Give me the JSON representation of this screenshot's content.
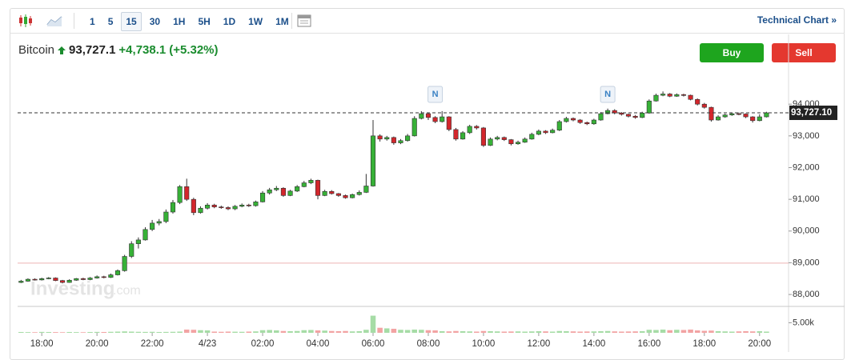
{
  "toolbar": {
    "intervals": [
      "1",
      "5",
      "15",
      "30",
      "1H",
      "5H",
      "1D",
      "1W",
      "1M"
    ],
    "active_interval": 2,
    "technical_chart": "Technical Chart »"
  },
  "header": {
    "name": "Bitcoin",
    "price": "93,727.1",
    "change": "+4,738.1",
    "change_percent": "(+5.32%)"
  },
  "buttons": {
    "buy": "Buy",
    "sell": "Sell"
  },
  "watermark": {
    "brand": "Investing",
    "suffix": ".com"
  },
  "chart_data": {
    "type": "candlestick",
    "up_color": "#37b137",
    "down_color": "#d3262c",
    "volume_up_color": "#a6dca6",
    "volume_down_color": "#f2a3a3",
    "xlim": [
      -0.5,
      111.2
    ],
    "xticks": [
      {
        "value": 3,
        "label": "18:00"
      },
      {
        "value": 11,
        "label": "20:00"
      },
      {
        "value": 19,
        "label": "22:00"
      },
      {
        "value": 27,
        "label": "4/23"
      },
      {
        "value": 35,
        "label": "02:00"
      },
      {
        "value": 43,
        "label": "04:00"
      },
      {
        "value": 51,
        "label": "06:00"
      },
      {
        "value": 59,
        "label": "08:00"
      },
      {
        "value": 67,
        "label": "10:00"
      },
      {
        "value": 75,
        "label": "12:00"
      },
      {
        "value": 83,
        "label": "14:00"
      },
      {
        "value": 91,
        "label": "16:00"
      },
      {
        "value": 99,
        "label": "18:00"
      },
      {
        "value": 107,
        "label": "20:00"
      }
    ],
    "ylim": [
      87650,
      95190
    ],
    "yticks": [
      {
        "value": 88000,
        "label": "88,000"
      },
      {
        "value": 89000,
        "label": "89,000"
      },
      {
        "value": 90000,
        "label": "90,000"
      },
      {
        "value": 91000,
        "label": "91,000"
      },
      {
        "value": 92000,
        "label": "92,000"
      },
      {
        "value": 93000,
        "label": "93,000"
      },
      {
        "value": 94000,
        "label": "94,000"
      }
    ],
    "reference_line": 88989,
    "last_price": {
      "value": 93727.1,
      "label": "93,727.10"
    },
    "volume_ylim": [
      0,
      12700
    ],
    "volume_yticks": [
      {
        "value": 5000,
        "label": "5.00k"
      }
    ],
    "news_markers": [
      {
        "x": 60,
        "label": "N"
      },
      {
        "x": 85,
        "label": "N"
      }
    ],
    "open": [
      88380,
      88420,
      88480,
      88460,
      88500,
      88520,
      88440,
      88380,
      88450,
      88500,
      88470,
      88520,
      88560,
      88540,
      88620,
      88750,
      89200,
      89600,
      89720,
      90050,
      90250,
      90300,
      90600,
      90900,
      91400,
      91000,
      90580,
      90720,
      90820,
      90760,
      90740,
      90700,
      90780,
      90820,
      90800,
      90920,
      91200,
      91300,
      91350,
      91120,
      91260,
      91400,
      91520,
      91600,
      91120,
      91250,
      91180,
      91120,
      91050,
      91150,
      91220,
      91420,
      93000,
      92900,
      92950,
      92780,
      92850,
      93000,
      93550,
      93700,
      93580,
      93450,
      93600,
      93200,
      92900,
      93100,
      93300,
      93250,
      92700,
      92900,
      92950,
      92880,
      92750,
      92800,
      92900,
      93050,
      93150,
      93100,
      93180,
      93450,
      93550,
      93500,
      93420,
      93380,
      93500,
      93700,
      93800,
      93720,
      93680,
      93620,
      93580,
      93720,
      94100,
      94280,
      94320,
      94250,
      94300,
      94280,
      94150,
      94000,
      93900,
      93500,
      93600,
      93660,
      93700,
      93690,
      93600,
      93480,
      93600
    ],
    "high": [
      88460,
      88510,
      88510,
      88530,
      88550,
      88540,
      88460,
      88480,
      88520,
      88530,
      88550,
      88600,
      88590,
      88660,
      88790,
      89250,
      89680,
      89800,
      90120,
      90350,
      90380,
      90680,
      90980,
      91450,
      91650,
      91050,
      90780,
      90880,
      90860,
      90800,
      90780,
      90820,
      90870,
      90860,
      90960,
      91260,
      91360,
      91420,
      91380,
      91300,
      91450,
      91580,
      91650,
      91620,
      91300,
      91290,
      91200,
      91150,
      91180,
      91280,
      91800,
      93500,
      93050,
      93000,
      92980,
      92900,
      93060,
      93620,
      93780,
      93720,
      93620,
      93780,
      93620,
      93250,
      93150,
      93350,
      93340,
      93280,
      92950,
      93000,
      92980,
      92900,
      92850,
      92950,
      93100,
      93200,
      93180,
      93230,
      93500,
      93600,
      93580,
      93530,
      93450,
      93540,
      93750,
      93860,
      93840,
      93750,
      93700,
      93660,
      93760,
      94150,
      94330,
      94400,
      94350,
      94340,
      94330,
      94300,
      94180,
      94040,
      93920,
      93650,
      93700,
      93740,
      93740,
      93710,
      93620,
      93680,
      93760
    ],
    "low": [
      88360,
      88400,
      88440,
      88440,
      88480,
      88420,
      88350,
      88370,
      88430,
      88450,
      88450,
      88500,
      88510,
      88520,
      88600,
      88720,
      89150,
      89450,
      89700,
      90000,
      90180,
      90250,
      90550,
      90850,
      90950,
      90500,
      90550,
      90680,
      90720,
      90700,
      90660,
      90660,
      90750,
      90760,
      90770,
      90900,
      91150,
      91260,
      91080,
      91100,
      91230,
      91380,
      91480,
      91000,
      91100,
      91150,
      91080,
      91020,
      91030,
      91120,
      91200,
      91400,
      92820,
      92850,
      92720,
      92740,
      92820,
      92980,
      93520,
      93500,
      93400,
      93420,
      93150,
      92850,
      92880,
      93060,
      93200,
      92650,
      92680,
      92860,
      92840,
      92700,
      92720,
      92780,
      92880,
      93020,
      93060,
      93080,
      93150,
      93420,
      93460,
      93380,
      93340,
      93350,
      93480,
      93680,
      93680,
      93640,
      93580,
      93540,
      93560,
      93700,
      94080,
      94250,
      94220,
      94230,
      94240,
      94120,
      93960,
      93860,
      93450,
      93480,
      93570,
      93630,
      93650,
      93560,
      93420,
      93460,
      93580
    ],
    "close": [
      88420,
      88480,
      88460,
      88500,
      88520,
      88440,
      88380,
      88450,
      88500,
      88470,
      88520,
      88560,
      88540,
      88620,
      88750,
      89200,
      89600,
      89720,
      90050,
      90250,
      90300,
      90600,
      90900,
      91400,
      91000,
      90580,
      90720,
      90820,
      90760,
      90740,
      90700,
      90780,
      90820,
      90800,
      90920,
      91200,
      91300,
      91350,
      91120,
      91260,
      91400,
      91520,
      91600,
      91120,
      91250,
      91180,
      91120,
      91050,
      91150,
      91220,
      91420,
      93000,
      92900,
      92950,
      92780,
      92850,
      93000,
      93550,
      93700,
      93580,
      93450,
      93600,
      93200,
      92900,
      93100,
      93300,
      93250,
      92700,
      92900,
      92950,
      92880,
      92750,
      92800,
      92900,
      93050,
      93150,
      93100,
      93180,
      93450,
      93550,
      93500,
      93420,
      93380,
      93500,
      93700,
      93800,
      93720,
      93680,
      93620,
      93580,
      93720,
      94100,
      94280,
      94320,
      94250,
      94300,
      94280,
      94150,
      94000,
      93900,
      93500,
      93600,
      93660,
      93700,
      93690,
      93600,
      93480,
      93600,
      93727.1
    ],
    "volume": [
      400,
      350,
      300,
      450,
      400,
      350,
      300,
      400,
      350,
      300,
      400,
      450,
      400,
      500,
      600,
      700,
      600,
      500,
      450,
      500,
      400,
      450,
      500,
      600,
      1600,
      1500,
      1300,
      1200,
      600,
      500,
      600,
      550,
      500,
      600,
      700,
      1300,
      1400,
      1200,
      900,
      800,
      900,
      1300,
      1400,
      1200,
      1100,
      900,
      800,
      900,
      700,
      800,
      1500,
      8500,
      2500,
      2200,
      2000,
      1500,
      1400,
      1600,
      1500,
      1300,
      1200,
      800,
      700,
      900,
      800,
      700,
      600,
      900,
      800,
      700,
      600,
      650,
      700,
      600,
      700,
      800,
      700,
      600,
      900,
      800,
      700,
      600,
      650,
      700,
      800,
      900,
      700,
      600,
      650,
      700,
      800,
      1500,
      1400,
      1600,
      1300,
      1500,
      1400,
      1600,
      1200,
      1000,
      1100,
      800,
      700,
      600,
      700,
      800,
      700,
      800,
      600
    ]
  }
}
